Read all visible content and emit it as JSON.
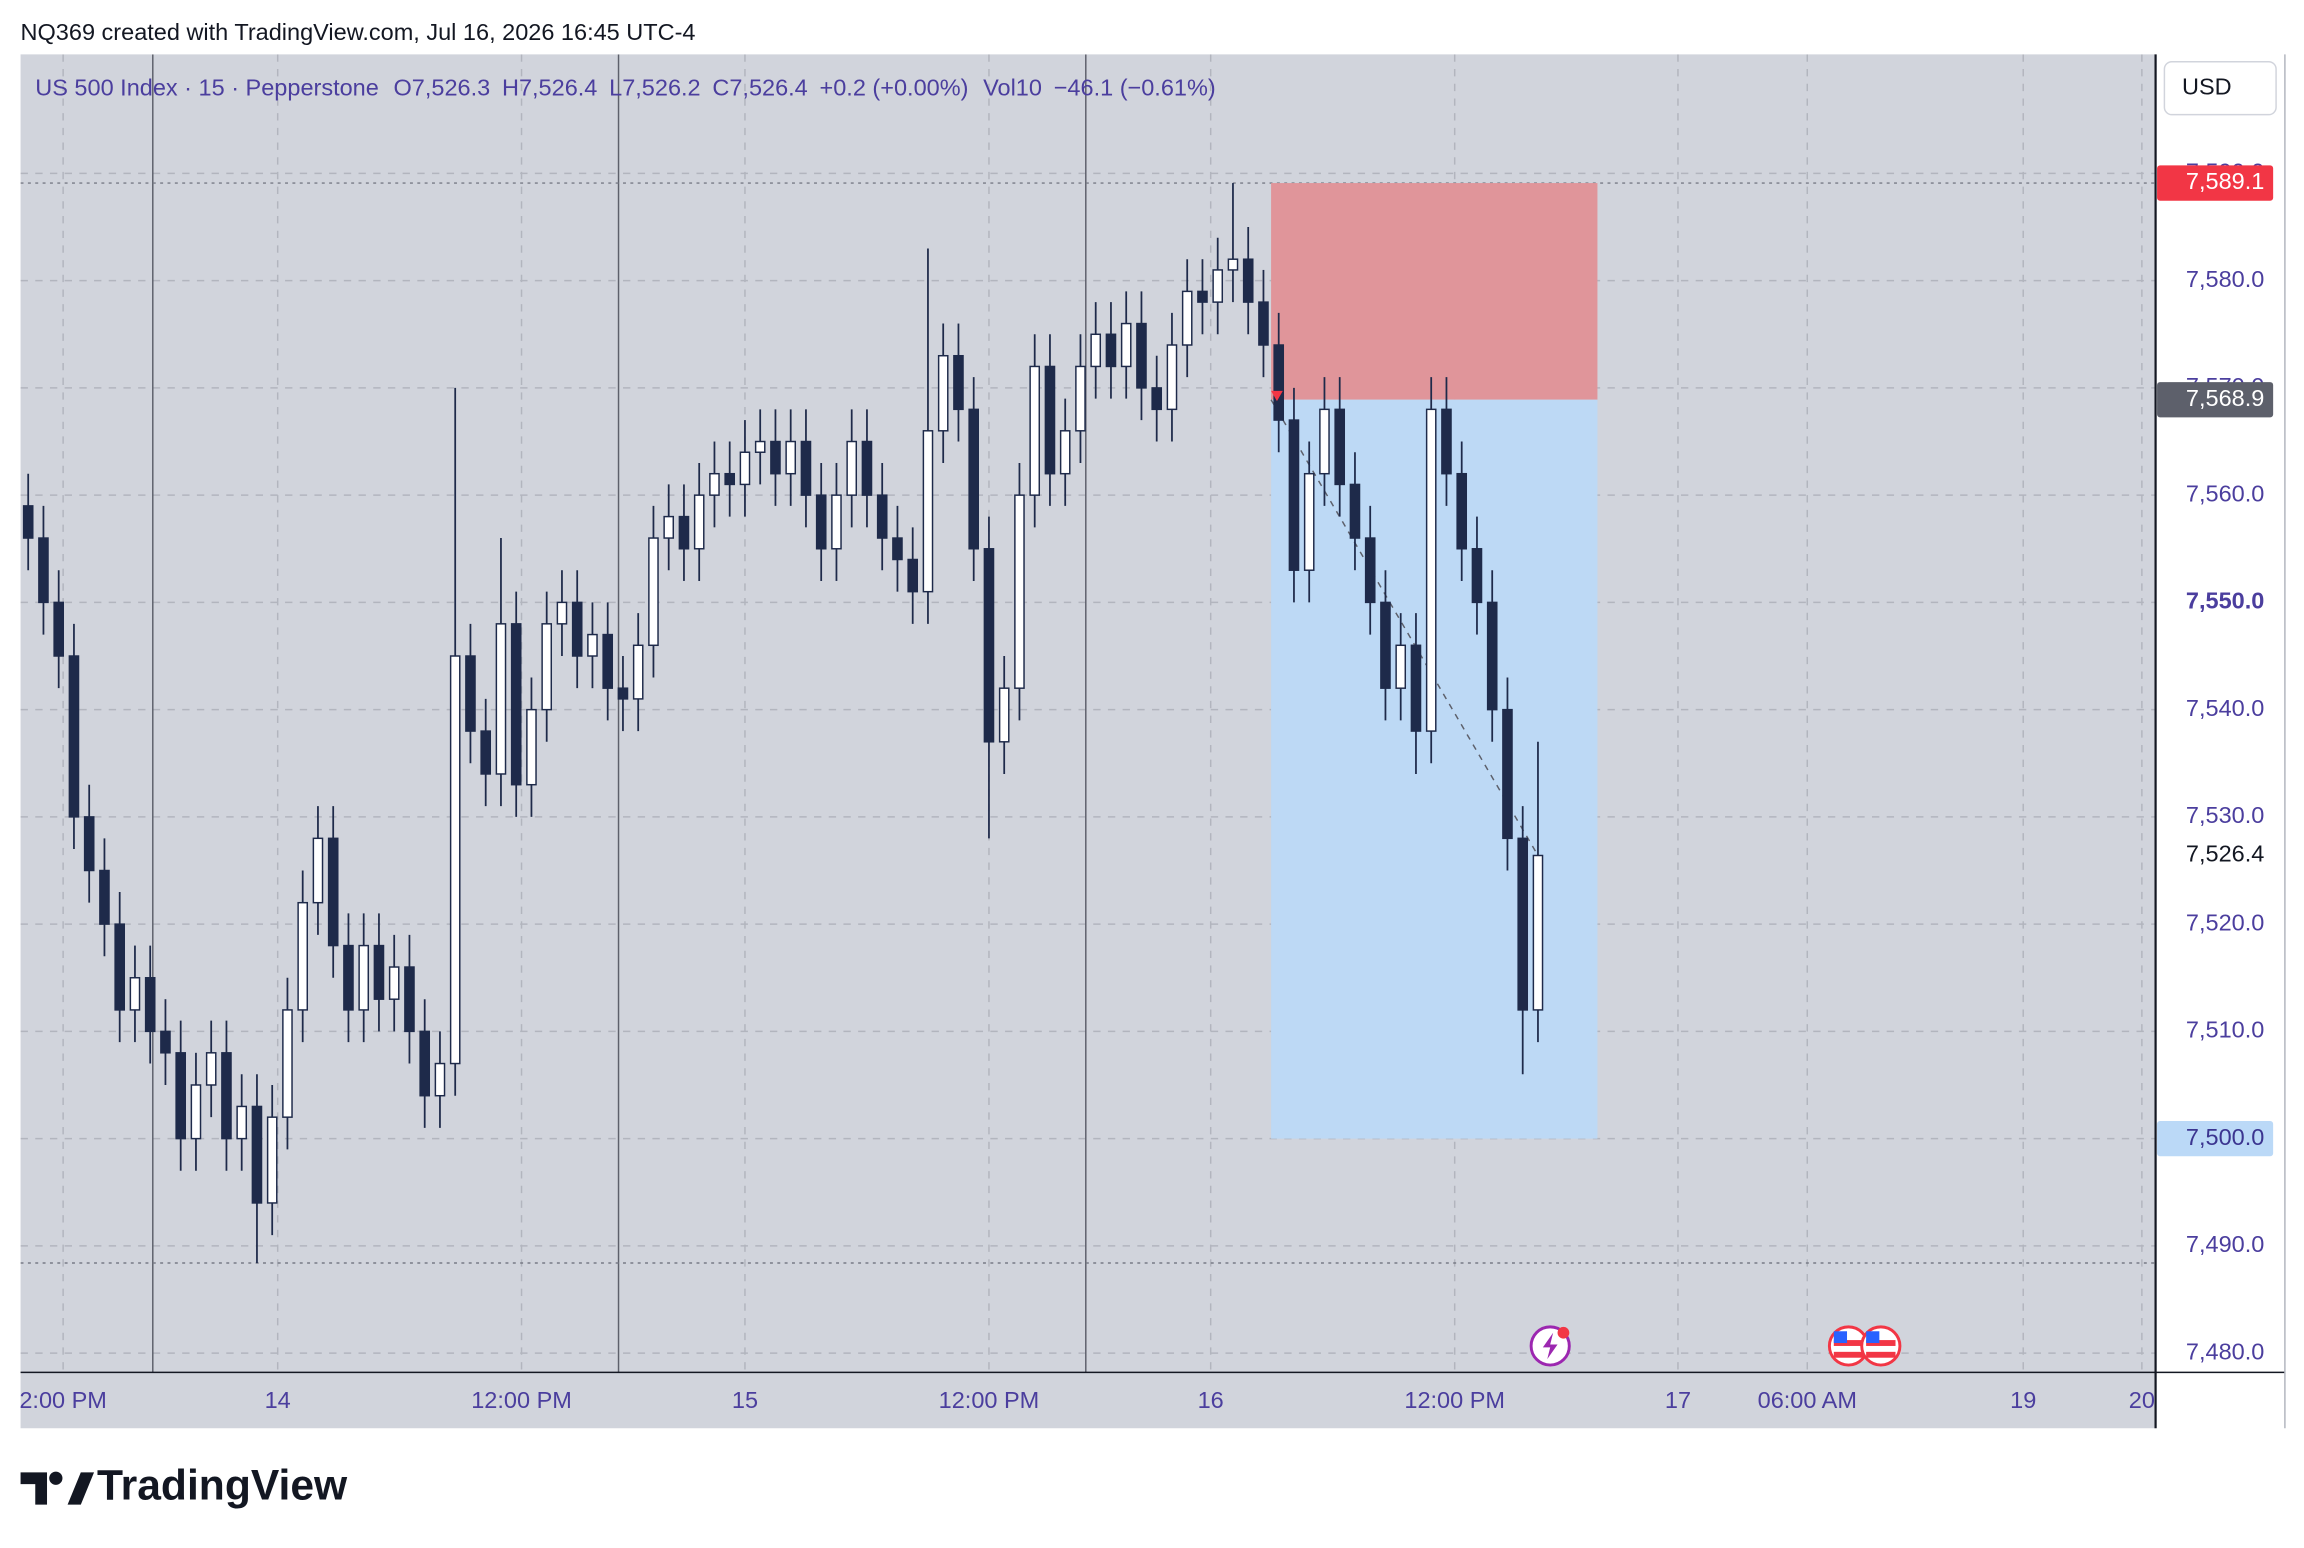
{
  "header": "NQ369 created with TradingView.com, Jul 16, 2026 16:45 UTC-4",
  "currency": "USD",
  "brand": "TradingView",
  "chart_data": {
    "type": "candlestick",
    "legend": {
      "symbol": "US 500 Index · 15 · Pepperstone",
      "o_label": "O",
      "o": "7,526.3",
      "h_label": "H",
      "h": "7,526.4",
      "l_label": "L",
      "l": "7,526.2",
      "c_label": "C",
      "c": "7,526.4",
      "change": "+0.2 (+0.00%)",
      "vol_label": "Vol",
      "vol": "10",
      "vol_change": "−46.1 (−0.61%)"
    },
    "xlim": [
      -0.5,
      139.5
    ],
    "ylim": [
      7478.2,
      7601.1
    ],
    "xticks": [
      {
        "value": 2.29,
        "label": "2:00 PM"
      },
      {
        "value": 16.36,
        "label": "14"
      },
      {
        "value": 32.35,
        "label": "12:00 PM"
      },
      {
        "value": 47.0,
        "label": "15"
      },
      {
        "value": 63.0,
        "label": "12:00 PM"
      },
      {
        "value": 77.54,
        "label": "16"
      },
      {
        "value": 93.54,
        "label": "12:00 PM"
      },
      {
        "value": 108.18,
        "label": "17"
      },
      {
        "value": 116.66,
        "label": "06:00 AM"
      },
      {
        "value": 130.82,
        "label": "19"
      },
      {
        "value": 138.6,
        "label": "20"
      }
    ],
    "yticks": [
      {
        "value": 7480,
        "label": "7,480.0"
      },
      {
        "value": 7490,
        "label": "7,490.0"
      },
      {
        "value": 7500,
        "label": "7,500.0"
      },
      {
        "value": 7510,
        "label": "7,510.0"
      },
      {
        "value": 7520,
        "label": "7,520.0"
      },
      {
        "value": 7530,
        "label": "7,530.0"
      },
      {
        "value": 7540,
        "label": "7,540.0"
      },
      {
        "value": 7550,
        "label": "7,550.0"
      },
      {
        "value": 7560,
        "label": "7,560.0"
      },
      {
        "value": 7570,
        "label": "7,570.0"
      },
      {
        "value": 7580,
        "label": "7,580.0"
      },
      {
        "value": 7590,
        "label": "7,590.0"
      }
    ],
    "bold_ytick_value": 7550,
    "grid": true,
    "session_breaks": [
      8.17,
      38.71,
      69.35
    ],
    "dotted_levels": [
      7589.1,
      7488.4
    ],
    "up_color": "#ffffff",
    "down_color": "#1e2a4a",
    "wick_color": "#1e2a4a",
    "position": {
      "x": [
        81.5,
        102.9
      ],
      "stop": {
        "value": 7589.1,
        "label": "7,589.1",
        "color": "#f23645",
        "text_color": "#ffffff"
      },
      "entry": {
        "value": 7568.9,
        "label": "7,568.9",
        "color": "#5d606b",
        "text_color": "#ffffff"
      },
      "target": {
        "value": 7500.0,
        "label": "7,500.0",
        "color": "#bbd9f7",
        "text_color": "#3b3590"
      },
      "loss_color": "#e0959a",
      "profit_color": "#bdd9f5"
    },
    "last_price": {
      "value": 7526.4,
      "label": "7,526.4",
      "color": "#ffffff",
      "text_color": "#131722"
    },
    "ohlc": {
      "open": [
        7559,
        7556,
        7550,
        7545,
        7530,
        7525,
        7520,
        7512,
        7515,
        7510,
        7508,
        7500,
        7505,
        7508,
        7500,
        7503,
        7494,
        7502,
        7512,
        7522,
        7528,
        7518,
        7512,
        7518,
        7513,
        7516,
        7510,
        7504,
        7507,
        7545,
        7538,
        7534,
        7548,
        7533,
        7540,
        7548,
        7550,
        7545,
        7547,
        7542,
        7541,
        7546,
        7556,
        7558,
        7555,
        7560,
        7562,
        7561,
        7564,
        7565,
        7562,
        7565,
        7560,
        7555,
        7560,
        7565,
        7560,
        7556,
        7554,
        7551,
        7566,
        7573,
        7568,
        7555,
        7537,
        7542,
        7560,
        7572,
        7562,
        7566,
        7572,
        7575,
        7572,
        7576,
        7570,
        7568,
        7574,
        7579,
        7578,
        7581,
        7582,
        7578,
        7574,
        7567,
        7553,
        7562,
        7568,
        7561,
        7556,
        7550,
        7542,
        7546,
        7538,
        7568,
        7562,
        7555,
        7550,
        7540,
        7528,
        7512
      ],
      "high": [
        7562,
        7559,
        7553,
        7548,
        7533,
        7528,
        7523,
        7518,
        7518,
        7513,
        7511,
        7508,
        7511,
        7511,
        7506,
        7506,
        7505,
        7515,
        7525,
        7531,
        7531,
        7521,
        7521,
        7521,
        7519,
        7519,
        7513,
        7510,
        7570,
        7548,
        7541,
        7556,
        7551,
        7543,
        7551,
        7553,
        7553,
        7550,
        7550,
        7545,
        7549,
        7559,
        7561,
        7561,
        7563,
        7565,
        7565,
        7567,
        7568,
        7568,
        7568,
        7568,
        7563,
        7563,
        7568,
        7568,
        7563,
        7559,
        7557,
        7583,
        7576,
        7576,
        7571,
        7558,
        7545,
        7563,
        7575,
        7575,
        7569,
        7575,
        7578,
        7578,
        7579,
        7579,
        7573,
        7577,
        7582,
        7582,
        7584,
        7589.1,
        7585,
        7581,
        7577,
        7570,
        7565,
        7571,
        7571,
        7564,
        7559,
        7553,
        7549,
        7549,
        7571,
        7571,
        7565,
        7558,
        7553,
        7543,
        7531,
        7537
      ],
      "low": [
        7553,
        7547,
        7542,
        7527,
        7522,
        7517,
        7509,
        7509,
        7507,
        7505,
        7497,
        7497,
        7502,
        7497,
        7497,
        7488.4,
        7491,
        7499,
        7509,
        7519,
        7515,
        7509,
        7509,
        7510,
        7510,
        7507,
        7501,
        7501,
        7504,
        7535,
        7531,
        7531,
        7530,
        7530,
        7537,
        7545,
        7542,
        7542,
        7539,
        7538,
        7538,
        7543,
        7553,
        7552,
        7552,
        7557,
        7558,
        7558,
        7561,
        7559,
        7559,
        7557,
        7552,
        7552,
        7557,
        7557,
        7553,
        7551,
        7548,
        7548,
        7563,
        7565,
        7552,
        7528,
        7534,
        7539,
        7557,
        7559,
        7559,
        7563,
        7569,
        7569,
        7569,
        7567,
        7565,
        7565,
        7571,
        7575,
        7575,
        7578,
        7575,
        7571,
        7564,
        7550,
        7550,
        7559,
        7558,
        7553,
        7547,
        7539,
        7539,
        7534,
        7535,
        7559,
        7552,
        7547,
        7537,
        7525,
        7506,
        7509
      ],
      "close": [
        7556,
        7550,
        7545,
        7530,
        7525,
        7520,
        7512,
        7515,
        7510,
        7508,
        7500,
        7505,
        7508,
        7500,
        7503,
        7494,
        7502,
        7512,
        7522,
        7528,
        7518,
        7512,
        7518,
        7513,
        7516,
        7510,
        7504,
        7507,
        7545,
        7538,
        7534,
        7548,
        7533,
        7540,
        7548,
        7550,
        7545,
        7547,
        7542,
        7541,
        7546,
        7556,
        7558,
        7555,
        7560,
        7562,
        7561,
        7564,
        7565,
        7562,
        7565,
        7560,
        7555,
        7560,
        7565,
        7560,
        7556,
        7554,
        7551,
        7566,
        7573,
        7568,
        7555,
        7537,
        7542,
        7560,
        7572,
        7562,
        7566,
        7572,
        7575,
        7572,
        7576,
        7570,
        7568,
        7574,
        7579,
        7578,
        7581,
        7582,
        7578,
        7574,
        7567,
        7553,
        7562,
        7568,
        7561,
        7556,
        7550,
        7542,
        7546,
        7538,
        7568,
        7562,
        7555,
        7550,
        7540,
        7528,
        7512,
        7526.4
      ]
    }
  }
}
